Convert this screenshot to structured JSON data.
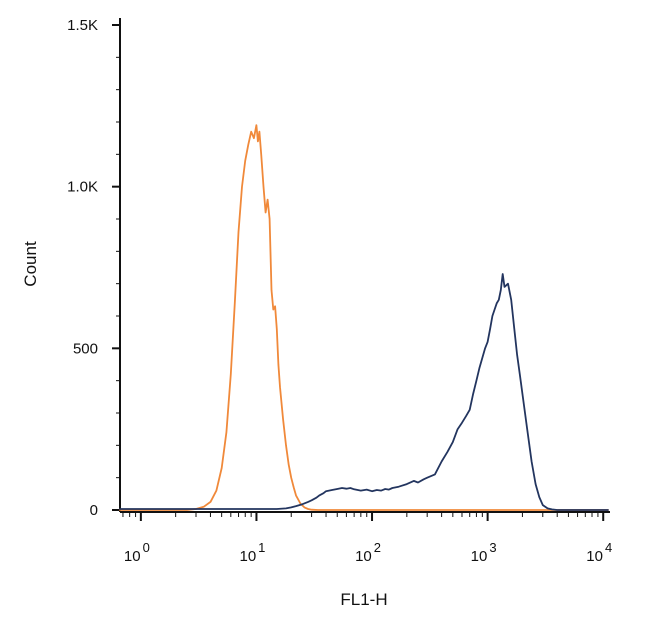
{
  "chart_data": {
    "type": "line",
    "title": "",
    "xlabel": "FL1-H",
    "ylabel": "Count",
    "xscale": "log",
    "xlim": [
      0.66,
      11000
    ],
    "ylim": [
      0,
      1500
    ],
    "grid": false,
    "legend": "none",
    "x_tick_labels": [
      {
        "base": "10",
        "exp": "0",
        "value": 1
      },
      {
        "base": "10",
        "exp": "1",
        "value": 10
      },
      {
        "base": "10",
        "exp": "2",
        "value": 100
      },
      {
        "base": "10",
        "exp": "3",
        "value": 1000
      },
      {
        "base": "10",
        "exp": "4",
        "value": 10000
      }
    ],
    "y_tick_labels": [
      {
        "text": "0",
        "value": 0
      },
      {
        "text": "500",
        "value": 500
      },
      {
        "text": "1.0K",
        "value": 1000
      },
      {
        "text": "1.5K",
        "value": 1500
      }
    ],
    "series": [
      {
        "color": "#F0893A",
        "x": [
          0.66,
          2.5,
          3.0,
          3.5,
          4.0,
          4.5,
          5.0,
          5.5,
          6.0,
          6.5,
          7.0,
          7.5,
          8.0,
          8.5,
          9.0,
          9.5,
          10.0,
          10.3,
          10.6,
          11.0,
          11.5,
          12.0,
          12.5,
          13.0,
          13.5,
          14.0,
          14.5,
          15.0,
          15.5,
          16.0,
          17.0,
          18.0,
          19.0,
          20.0,
          21.0,
          22.0,
          24.0,
          26.0,
          28.0,
          30.0,
          34.0,
          40.0,
          100,
          1000,
          11000
        ],
        "y": [
          0,
          0,
          3,
          10,
          25,
          60,
          130,
          240,
          420,
          640,
          860,
          1000,
          1080,
          1130,
          1170,
          1150,
          1190,
          1140,
          1170,
          1100,
          1000,
          920,
          960,
          900,
          680,
          620,
          630,
          560,
          450,
          380,
          280,
          200,
          140,
          100,
          70,
          45,
          20,
          8,
          3,
          1,
          0,
          0,
          0,
          0,
          0
        ]
      },
      {
        "color": "#23355F",
        "x": [
          0.66,
          10,
          15,
          18,
          20,
          22,
          25,
          28,
          30,
          33,
          35,
          38,
          40,
          45,
          50,
          55,
          60,
          65,
          70,
          80,
          90,
          100,
          110,
          120,
          130,
          140,
          150,
          170,
          200,
          230,
          250,
          280,
          300,
          350,
          400,
          450,
          500,
          550,
          600,
          650,
          700,
          750,
          800,
          850,
          900,
          950,
          1000,
          1050,
          1100,
          1150,
          1200,
          1250,
          1300,
          1350,
          1400,
          1500,
          1600,
          1700,
          1800,
          1900,
          2000,
          2200,
          2400,
          2600,
          2800,
          3000,
          3300,
          3600,
          4000,
          4500,
          5000,
          11000
        ],
        "y": [
          3,
          3,
          3,
          5,
          8,
          12,
          18,
          25,
          30,
          38,
          45,
          52,
          58,
          62,
          65,
          68,
          66,
          68,
          64,
          60,
          63,
          58,
          62,
          60,
          65,
          63,
          68,
          72,
          80,
          90,
          85,
          95,
          100,
          110,
          150,
          180,
          210,
          250,
          270,
          290,
          310,
          360,
          400,
          440,
          470,
          500,
          520,
          560,
          600,
          620,
          640,
          650,
          680,
          730,
          690,
          700,
          650,
          560,
          480,
          420,
          360,
          250,
          150,
          80,
          40,
          15,
          5,
          2,
          0,
          0,
          0,
          0
        ]
      }
    ]
  }
}
